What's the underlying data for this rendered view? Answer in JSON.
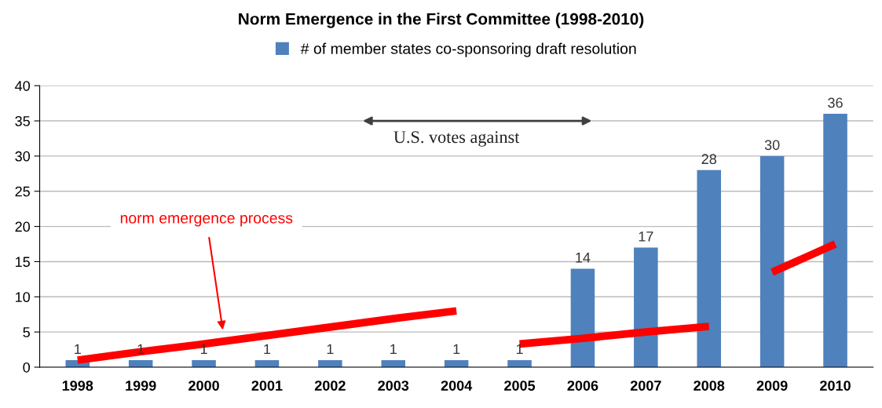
{
  "chart_data": {
    "type": "bar",
    "title": "Norm Emergence in the First Committee (1998-2010)",
    "categories": [
      "1998",
      "1999",
      "2000",
      "2001",
      "2002",
      "2003",
      "2004",
      "2005",
      "2006",
      "2007",
      "2008",
      "2009",
      "2010"
    ],
    "series": [
      {
        "name": "# of member states co-sponsoring draft resolution",
        "color": "#4f81bd",
        "values": [
          1,
          1,
          1,
          1,
          1,
          1,
          1,
          1,
          14,
          17,
          28,
          30,
          36
        ],
        "value_labels": [
          "1",
          "1",
          "1",
          "1",
          "1",
          "1",
          "1",
          "1",
          "14",
          "17",
          "28",
          "30",
          "36"
        ]
      },
      {
        "type": "line",
        "color": "#ff0000",
        "values": [
          1.0,
          2.2,
          3.3,
          4.5,
          5.7,
          6.9,
          8.0,
          null,
          null,
          null,
          null,
          null,
          null
        ]
      },
      {
        "type": "line",
        "color": "#ff0000",
        "values": [
          null,
          null,
          null,
          null,
          null,
          null,
          null,
          3.3,
          4.1,
          5.0,
          5.8,
          null,
          null
        ]
      },
      {
        "type": "line",
        "color": "#ff0000",
        "values": [
          null,
          null,
          null,
          null,
          null,
          null,
          null,
          null,
          null,
          null,
          null,
          13.5,
          17.5
        ]
      }
    ],
    "ylim": [
      0,
      40
    ],
    "yticks": [
      0,
      5,
      10,
      15,
      20,
      25,
      30,
      35,
      40
    ],
    "grid": "y",
    "legend": "top",
    "annotations": [
      "norm emergence process",
      "U.S. votes against"
    ]
  }
}
